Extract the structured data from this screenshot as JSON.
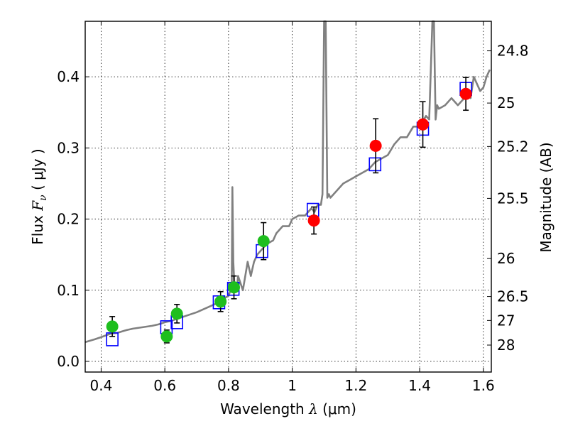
{
  "chart_data": {
    "type": "scatter",
    "xlabel": {
      "prefix": "Wavelength  ",
      "symbol": "λ",
      "unit": " (μm)"
    },
    "ylabel": {
      "prefix": "Flux  ",
      "symbol": "F",
      "subscript": "ν",
      "unit": "  ( μJy )"
    },
    "y2label": "Magnitude (AB)",
    "xlim": [
      0.35,
      1.625
    ],
    "ylim": [
      -0.015,
      0.478
    ],
    "xticks": [
      0.4,
      0.6,
      0.8,
      1.0,
      1.2,
      1.4,
      1.6
    ],
    "xtick_labels": [
      "0.4",
      "0.6",
      "0.8",
      "1",
      "1.2",
      "1.4",
      "1.6"
    ],
    "yticks": [
      0.0,
      0.1,
      0.2,
      0.3,
      0.4
    ],
    "ytick_labels": [
      "0.0",
      "0.1",
      "0.2",
      "0.3",
      "0.4"
    ],
    "magnitude_ticks": [
      {
        "label": "24.8",
        "flux": 0.4365
      },
      {
        "label": "25",
        "flux": 0.3631
      },
      {
        "label": "25.2",
        "flux": 0.302
      },
      {
        "label": "25.5",
        "flux": 0.2291
      },
      {
        "label": "26",
        "flux": 0.1445
      },
      {
        "label": "26.5",
        "flux": 0.0912
      },
      {
        "label": "27",
        "flux": 0.0575
      },
      {
        "label": "28",
        "flux": 0.0229
      }
    ],
    "grid": true,
    "colors": {
      "model": "#808080",
      "optical": "#1ebe1e",
      "nir": "#ff0000",
      "model_box": "#0000ff",
      "errorbar": "#000000"
    },
    "series": [
      {
        "kind": "line",
        "color": "#808080",
        "x": [
          0.35,
          0.38,
          0.4,
          0.43,
          0.45,
          0.48,
          0.5,
          0.53,
          0.56,
          0.58,
          0.6,
          0.62,
          0.64,
          0.66,
          0.68,
          0.7,
          0.72,
          0.74,
          0.76,
          0.78,
          0.8,
          0.81,
          0.812,
          0.815,
          0.818,
          0.822,
          0.826,
          0.83,
          0.845,
          0.86,
          0.87,
          0.875,
          0.88,
          0.89,
          0.9,
          0.92,
          0.94,
          0.95,
          0.97,
          0.99,
          1.0,
          1.02,
          1.04,
          1.06,
          1.07,
          1.08,
          1.09,
          1.095,
          1.1,
          1.105,
          1.11,
          1.115,
          1.12,
          1.14,
          1.16,
          1.18,
          1.2,
          1.22,
          1.24,
          1.26,
          1.28,
          1.3,
          1.32,
          1.34,
          1.36,
          1.38,
          1.4,
          1.42,
          1.43,
          1.44,
          1.445,
          1.45,
          1.455,
          1.46,
          1.48,
          1.5,
          1.52,
          1.54,
          1.55,
          1.56,
          1.57,
          1.58,
          1.59,
          1.6,
          1.61,
          1.62
        ],
        "y": [
          0.027,
          0.031,
          0.034,
          0.039,
          0.04,
          0.044,
          0.046,
          0.048,
          0.05,
          0.052,
          0.055,
          0.057,
          0.06,
          0.063,
          0.066,
          0.069,
          0.073,
          0.077,
          0.081,
          0.087,
          0.092,
          0.105,
          0.245,
          0.14,
          0.11,
          0.105,
          0.1,
          0.12,
          0.1,
          0.14,
          0.12,
          0.13,
          0.14,
          0.15,
          0.155,
          0.165,
          0.17,
          0.18,
          0.19,
          0.19,
          0.2,
          0.205,
          0.205,
          0.215,
          0.21,
          0.22,
          0.22,
          0.235,
          0.478,
          0.478,
          0.23,
          0.235,
          0.23,
          0.24,
          0.25,
          0.255,
          0.26,
          0.265,
          0.27,
          0.28,
          0.285,
          0.29,
          0.305,
          0.315,
          0.315,
          0.33,
          0.33,
          0.345,
          0.34,
          0.478,
          0.478,
          0.34,
          0.36,
          0.355,
          0.36,
          0.37,
          0.36,
          0.37,
          0.38,
          0.37,
          0.4,
          0.39,
          0.38,
          0.385,
          0.4,
          0.41
        ]
      },
      {
        "kind": "open-squares",
        "color": "#0000ff",
        "x": [
          0.435,
          0.605,
          0.638,
          0.77,
          0.815,
          0.905,
          1.065,
          1.26,
          1.41,
          1.545
        ],
        "y": [
          0.031,
          0.048,
          0.055,
          0.083,
          0.102,
          0.155,
          0.213,
          0.277,
          0.327,
          0.383
        ]
      },
      {
        "kind": "points",
        "color": "#1ebe1e",
        "x": [
          0.435,
          0.606,
          0.638,
          0.775,
          0.817,
          0.91
        ],
        "y": [
          0.049,
          0.035,
          0.067,
          0.084,
          0.104,
          0.169
        ],
        "yerr": [
          0.014,
          0.009,
          0.013,
          0.014,
          0.016,
          0.026
        ]
      },
      {
        "kind": "points",
        "color": "#ff0000",
        "x": [
          1.068,
          1.262,
          1.41,
          1.545
        ],
        "y": [
          0.198,
          0.303,
          0.333,
          0.376
        ],
        "yerr": [
          0.019,
          0.038,
          0.032,
          0.023
        ]
      }
    ]
  }
}
